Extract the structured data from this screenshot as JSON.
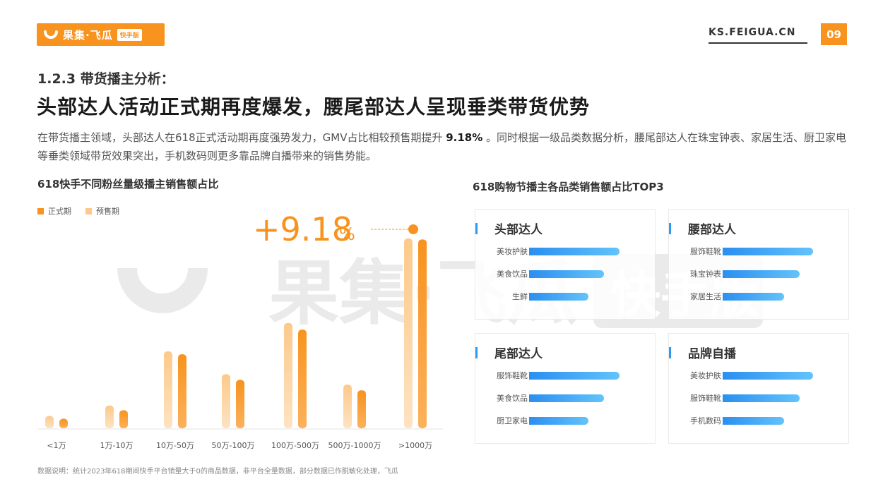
{
  "brand": {
    "logo_text": "果集·飞瓜",
    "logo_badge": "快手版",
    "site_url": "KS.FEIGUA.CN",
    "page_number": "09",
    "watermark_text": "果集·飞瓜",
    "watermark_badge": "快手版"
  },
  "colors": {
    "orange": "#f7931e",
    "orange_light": "#fcc98a",
    "blue": "#2f9bf0"
  },
  "header": {
    "section_label": "1.2.3 带货播主分析：",
    "headline": "头部达人活动正式期再度爆发，腰尾部达人呈现垂类带货优势"
  },
  "description": {
    "part1": "在带货播主领域，头部达人在618正式活动期再度强势发力，GMV占比相较预售期提升 ",
    "highlight": "9.18%",
    "part2": " 。同时根据一级品类数据分析，腰尾部达人在珠宝钟表、家居生活、厨卫家电等垂类领域带货效果突出，手机数码则更多靠品牌自播带来的销售势能。"
  },
  "left_chart": {
    "title": "618快手不同粉丝量级播主销售额占比",
    "legend": {
      "formal": "正式期",
      "presale": "预售期"
    },
    "annotation": {
      "value": "+9.18",
      "unit": "%"
    }
  },
  "chart_data": [
    {
      "type": "bar",
      "title": "618快手不同粉丝量级播主销售额占比",
      "categories": [
        "<1万",
        "1万-10万",
        "10万-50万",
        "50万-100万",
        "100万-500万",
        "500万-1000万",
        ">1000万"
      ],
      "series": [
        {
          "name": "预售期",
          "values": [
            1.3,
            2.4,
            8.1,
            5.7,
            11.1,
            4.6,
            20.0
          ]
        },
        {
          "name": "正式期",
          "values": [
            1.0,
            1.9,
            7.8,
            5.1,
            10.4,
            4.0,
            19.9
          ]
        }
      ],
      "ylim": [
        0,
        22
      ],
      "grid": false,
      "legend_position": "top-left"
    },
    {
      "type": "bar",
      "title": "618购物节播主各品类销售额占比TOP3",
      "groups": [
        {
          "name": "头部达人",
          "categories": [
            "美妆护肤",
            "美食饮品",
            "生鲜"
          ],
          "values": [
            100,
            83,
            66
          ]
        },
        {
          "name": "腰部达人",
          "categories": [
            "服饰鞋靴",
            "珠宝钟表",
            "家居生活"
          ],
          "values": [
            100,
            85,
            68
          ]
        },
        {
          "name": "尾部达人",
          "categories": [
            "服饰鞋靴",
            "美食饮品",
            "厨卫家电"
          ],
          "values": [
            100,
            83,
            66
          ]
        },
        {
          "name": "品牌自播",
          "categories": [
            "美妆护肤",
            "服饰鞋靴",
            "手机数码"
          ],
          "values": [
            100,
            85,
            68
          ]
        }
      ]
    }
  ],
  "right_chart": {
    "title": "618购物节播主各品类销售额占比TOP3"
  },
  "footnote": "数据说明：统计2023年618期间快手平台销量大于0的商品数据，非平台全量数据，部分数据已作脱敏化处理，飞瓜"
}
